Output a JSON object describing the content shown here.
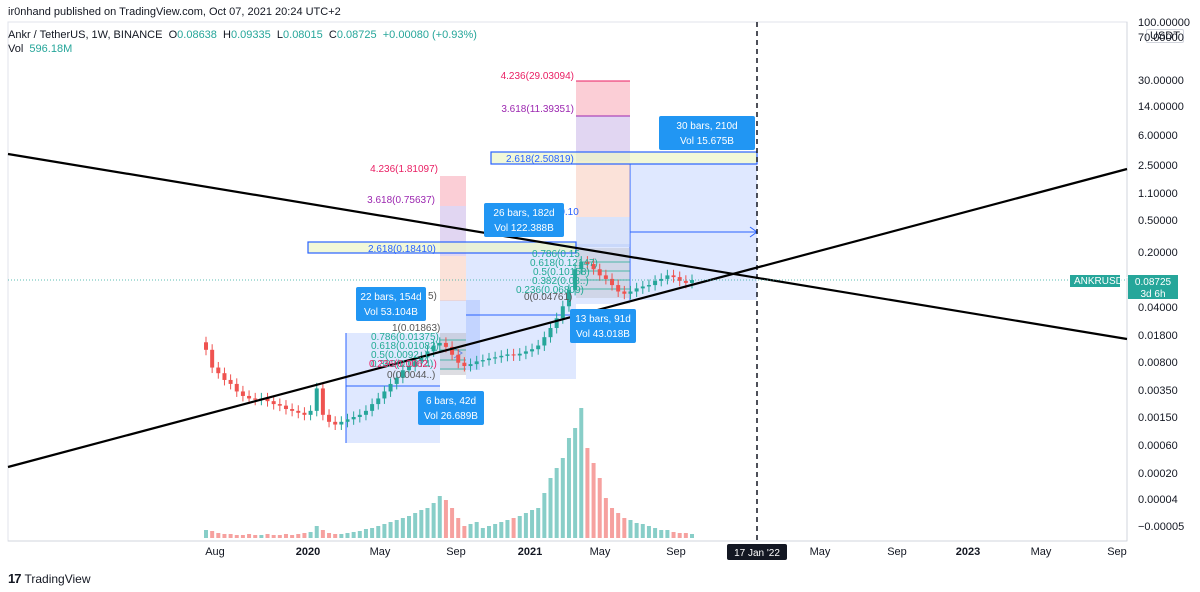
{
  "header": {
    "publisher": "ir0nhand published on TradingView.com, Oct 07, 2021 20:24 UTC+2",
    "symbol": "Ankr / TetherUS, 1W, BINANCE",
    "o_label": "O",
    "o_value": "0.08638",
    "h_label": "H",
    "h_value": "0.09335",
    "l_label": "L",
    "l_value": "0.08015",
    "c_label": "C",
    "c_value": "0.08725",
    "change": "+0.00080 (+0.93%)",
    "vol_label": "Vol",
    "vol_value": "596.18M"
  },
  "price_axis": {
    "currency": "USDT",
    "labels": [
      "100.00000",
      "70.00000",
      "30.00000",
      "14.00000",
      "6.00000",
      "2.50000",
      "1.10000",
      "0.50000",
      "0.20000",
      "0.04000",
      "0.01800",
      "0.00800",
      "0.00350",
      "0.00150",
      "0.00060",
      "0.00020",
      "0.00004",
      "−0.00005"
    ]
  },
  "ticker_badge": {
    "symbol": "ANKRUSDT",
    "price": "0.08725",
    "countdown": "3d 6h",
    "color": "#26a69a"
  },
  "time_axis": {
    "labels": [
      "Aug",
      "2020",
      "May",
      "Sep",
      "2021",
      "May",
      "Sep",
      "Jan",
      "May",
      "Sep",
      "2023",
      "May",
      "Sep"
    ],
    "bold": [
      false,
      true,
      false,
      false,
      true,
      false,
      false,
      false,
      false,
      false,
      true,
      false,
      false
    ],
    "cursor_label": "17 Jan '22"
  },
  "callouts": [
    {
      "line1": "30 bars, 210d",
      "line2": "Vol 15.675B"
    },
    {
      "line1": "26 bars, 182d",
      "line2": "Vol 122.388B"
    },
    {
      "line1": "22 bars, 154d",
      "line2": "Vol 53.104B"
    },
    {
      "line1": "13 bars, 91d",
      "line2": "Vol 43.018B"
    },
    {
      "line1": "6 bars, 42d",
      "line2": "Vol 26.689B"
    }
  ],
  "fib_labels": {
    "fib3": [
      "4.236(29.03094)",
      "3.618(11.39351)",
      "2.618(2.50819)"
    ],
    "fib2": [
      "4.236(1.81097)",
      "3.618(0.75637)",
      "2.618(0.18410)",
      "0.786(0.15",
      "0.618(0.12147)",
      "0.5(0.10158)",
      "0.382(0.08..)",
      "0.236(0.06809)",
      "0(0.04761)",
      "(0.10"
    ],
    "fib1": [
      "1(0.01863)",
      "0.786(0.01375)",
      "0.618(0.01082)",
      "0.5(0.0092..)",
      "0.382(0.0074)",
      "0.236(0.0062..)",
      "0(0.0044..)",
      "5)"
    ]
  },
  "footer": {
    "brand": "TradingView"
  },
  "colors": {
    "up": "#26a69a",
    "down": "#ef5350",
    "range": "#2962ff",
    "fib_pink": "#f7a6b5",
    "fib_purple": "#c9b4e8",
    "fib_teal": "#22ab94"
  },
  "chart_data": {
    "type": "candlestick",
    "symbol": "ANKRUSDT",
    "interval": "1W",
    "y_scale": "log",
    "last_price": 0.08725,
    "x_ticks": [
      "Aug",
      "2020",
      "May",
      "Sep",
      "2021",
      "May",
      "Sep",
      "17 Jan '22",
      "May",
      "Sep",
      "2023",
      "May",
      "Sep"
    ],
    "y_ticks": [
      100,
      70,
      30,
      14,
      6,
      2.5,
      1.1,
      0.5,
      0.2,
      0.04,
      0.018,
      0.008,
      0.0035,
      0.0015,
      0.0006,
      0.0002,
      4e-05,
      -5e-05
    ],
    "ohlc_series": {
      "name": "ANKRUSDT",
      "approx_closes": [
        0.011,
        0.0065,
        0.0055,
        0.0045,
        0.004,
        0.0032,
        0.0028,
        0.0026,
        0.0025,
        0.0026,
        0.0024,
        0.0022,
        0.0021,
        0.0019,
        0.0018,
        0.0017,
        0.0016,
        0.0018,
        0.0035,
        0.0016,
        0.0013,
        0.0012,
        0.0013,
        0.0014,
        0.0015,
        0.0016,
        0.0018,
        0.0022,
        0.0026,
        0.0032,
        0.004,
        0.0048,
        0.006,
        0.0068,
        0.0078,
        0.0088,
        0.0105,
        0.0125,
        0.0135,
        0.012,
        0.0095,
        0.0075,
        0.0068,
        0.0072,
        0.0078,
        0.0081,
        0.0085,
        0.0088,
        0.0092,
        0.0096,
        0.0093,
        0.0098,
        0.0105,
        0.0112,
        0.0125,
        0.016,
        0.021,
        0.028,
        0.04,
        0.065,
        0.12,
        0.15,
        0.14,
        0.12,
        0.1,
        0.09,
        0.075,
        0.062,
        0.058,
        0.062,
        0.068,
        0.072,
        0.075,
        0.085,
        0.09,
        0.1,
        0.095,
        0.085,
        0.08,
        0.087
      ]
    },
    "trendlines": [
      "descending resistance",
      "ascending support"
    ],
    "fibonacci_extensions": [
      {
        "levels": [
          {
            "ratio": 1,
            "price": 0.01863
          },
          {
            "ratio": 0.786,
            "price": 0.01375
          },
          {
            "ratio": 0.618,
            "price": 0.01082
          },
          {
            "ratio": 0.236,
            "price": 0.0062
          },
          {
            "ratio": 0,
            "price": 0.0044
          }
        ]
      },
      {
        "levels": [
          {
            "ratio": 4.236,
            "price": 1.81097
          },
          {
            "ratio": 3.618,
            "price": 0.75637
          },
          {
            "ratio": 2.618,
            "price": 0.1841
          },
          {
            "ratio": 0.618,
            "price": 0.12147
          },
          {
            "ratio": 0.5,
            "price": 0.10158
          },
          {
            "ratio": 0.236,
            "price": 0.06809
          },
          {
            "ratio": 0,
            "price": 0.04761
          }
        ]
      },
      {
        "levels": [
          {
            "ratio": 4.236,
            "price": 29.03094
          },
          {
            "ratio": 3.618,
            "price": 11.39351
          },
          {
            "ratio": 2.618,
            "price": 2.50819
          }
        ]
      }
    ],
    "date_ranges": [
      {
        "bars": 6,
        "days": 42,
        "volume": "26.689B"
      },
      {
        "bars": 22,
        "days": 154,
        "volume": "53.104B"
      },
      {
        "bars": 13,
        "days": 91,
        "volume": "43.018B"
      },
      {
        "bars": 26,
        "days": 182,
        "volume": "122.388B"
      },
      {
        "bars": 30,
        "days": 210,
        "volume": "15.675B"
      }
    ]
  }
}
